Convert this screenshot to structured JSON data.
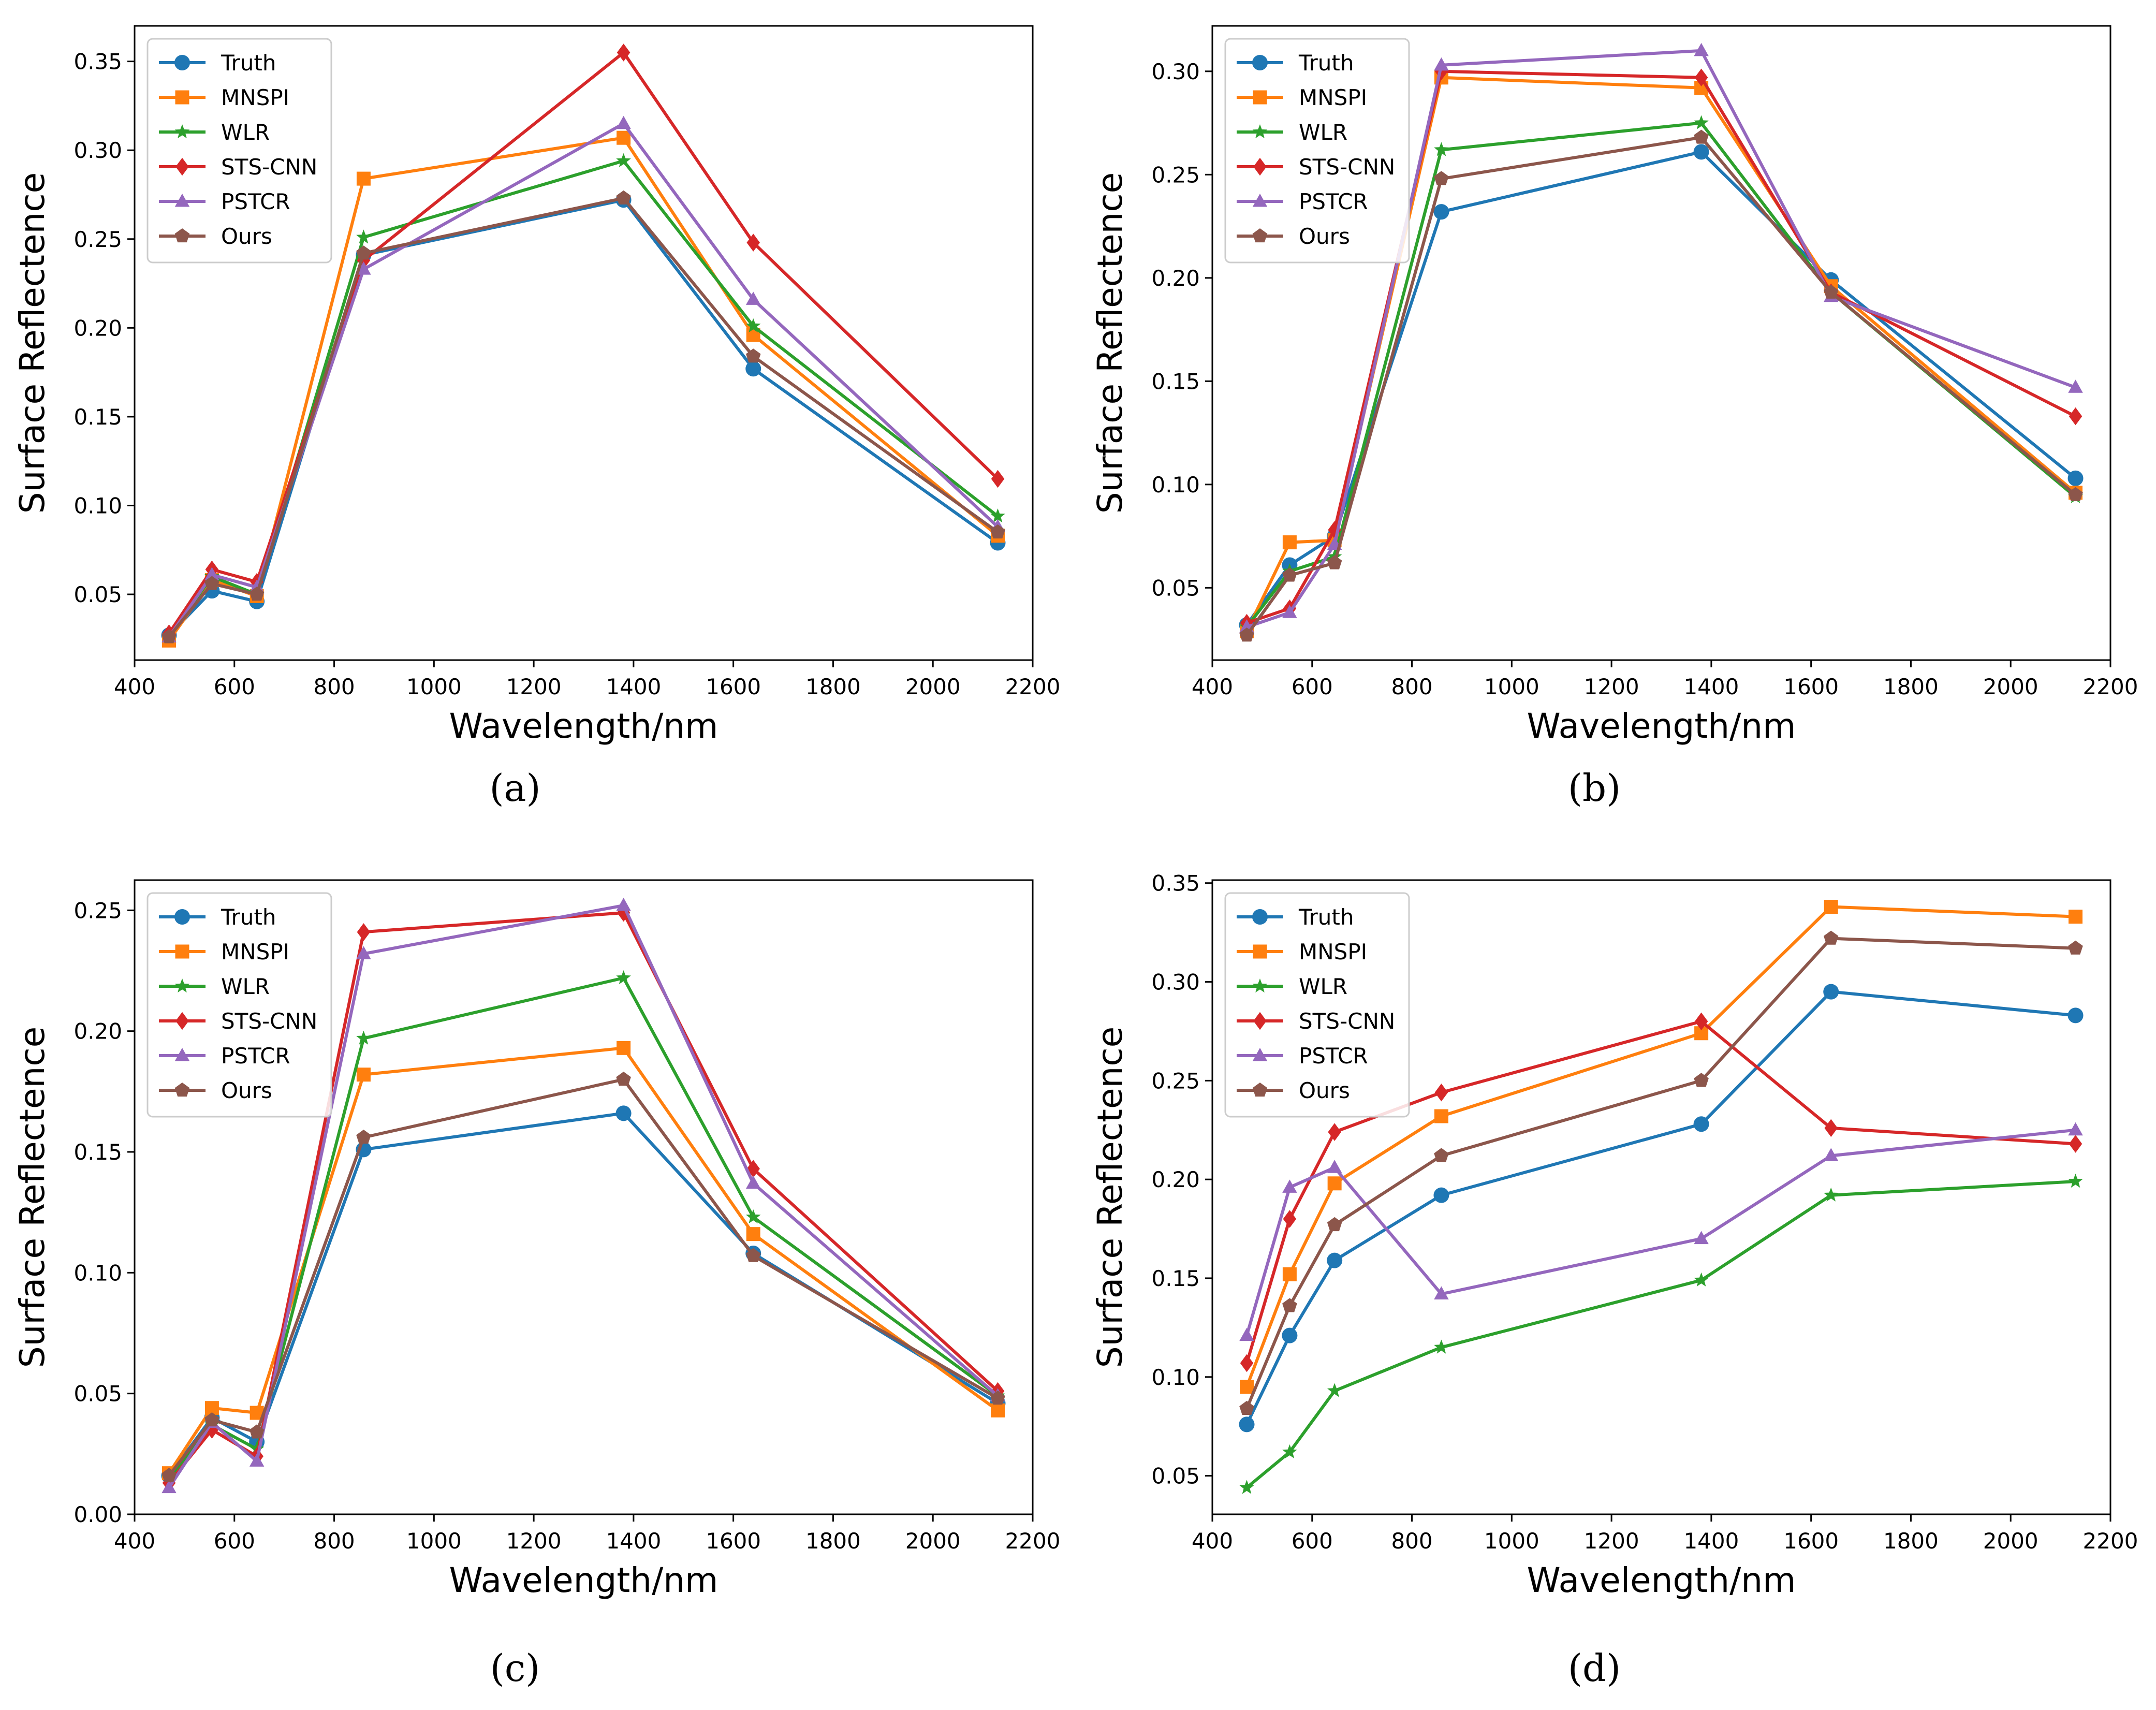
{
  "chart_data": [
    {
      "type": "line",
      "caption": "(a)",
      "xlabel": "Wavelength/nm",
      "ylabel": "Surface Reflectence",
      "xlim": [
        400,
        2200
      ],
      "ylim": [
        0.013,
        0.37
      ],
      "xticks": [
        400,
        600,
        800,
        1000,
        1200,
        1400,
        1600,
        1800,
        2000,
        2200
      ],
      "yticks": [
        0.05,
        0.1,
        0.15,
        0.2,
        0.25,
        0.3,
        0.35
      ],
      "ytick_labels": [
        "0.05",
        "0.10",
        "0.15",
        "0.20",
        "0.25",
        "0.30",
        "0.35"
      ],
      "x": [
        469,
        555,
        645,
        859,
        1380,
        1640,
        2130
      ],
      "legend_position": "upper-left",
      "series": [
        {
          "name": "Truth",
          "values": [
            0.027,
            0.052,
            0.046,
            0.241,
            0.272,
            0.177,
            0.079
          ]
        },
        {
          "name": "MNSPI",
          "values": [
            0.024,
            0.058,
            0.049,
            0.284,
            0.307,
            0.196,
            0.083
          ]
        },
        {
          "name": "WLR",
          "values": [
            0.026,
            0.06,
            0.05,
            0.251,
            0.294,
            0.201,
            0.094
          ]
        },
        {
          "name": "STS-CNN",
          "values": [
            0.028,
            0.064,
            0.057,
            0.238,
            0.355,
            0.248,
            0.115
          ]
        },
        {
          "name": "PSTCR",
          "values": [
            0.026,
            0.061,
            0.054,
            0.233,
            0.315,
            0.216,
            0.088
          ]
        },
        {
          "name": "Ours",
          "values": [
            0.026,
            0.056,
            0.05,
            0.242,
            0.273,
            0.184,
            0.085
          ]
        }
      ]
    },
    {
      "type": "line",
      "caption": "(b)",
      "xlabel": "Wavelength/nm",
      "ylabel": "Surface Reflectence",
      "xlim": [
        400,
        2200
      ],
      "ylim": [
        0.015,
        0.322
      ],
      "xticks": [
        400,
        600,
        800,
        1000,
        1200,
        1400,
        1600,
        1800,
        2000,
        2200
      ],
      "yticks": [
        0.05,
        0.1,
        0.15,
        0.2,
        0.25,
        0.3
      ],
      "ytick_labels": [
        "0.05",
        "0.10",
        "0.15",
        "0.20",
        "0.25",
        "0.30"
      ],
      "x": [
        469,
        555,
        645,
        859,
        1380,
        1640,
        2130
      ],
      "legend_position": "upper-left",
      "series": [
        {
          "name": "Truth",
          "values": [
            0.032,
            0.061,
            0.075,
            0.232,
            0.261,
            0.199,
            0.103
          ]
        },
        {
          "name": "MNSPI",
          "values": [
            0.029,
            0.072,
            0.073,
            0.297,
            0.292,
            0.196,
            0.096
          ]
        },
        {
          "name": "WLR",
          "values": [
            0.031,
            0.058,
            0.065,
            0.262,
            0.275,
            0.193,
            0.094
          ]
        },
        {
          "name": "STS-CNN",
          "values": [
            0.033,
            0.04,
            0.078,
            0.3,
            0.297,
            0.193,
            0.133
          ]
        },
        {
          "name": "PSTCR",
          "values": [
            0.031,
            0.038,
            0.071,
            0.303,
            0.31,
            0.191,
            0.147
          ]
        },
        {
          "name": "Ours",
          "values": [
            0.027,
            0.056,
            0.062,
            0.248,
            0.268,
            0.193,
            0.095
          ]
        }
      ]
    },
    {
      "type": "line",
      "caption": "(c)",
      "xlabel": "Wavelength/nm",
      "ylabel": "Surface Reflectence",
      "xlim": [
        400,
        2200
      ],
      "ylim": [
        0.0,
        0.2625
      ],
      "xticks": [
        400,
        600,
        800,
        1000,
        1200,
        1400,
        1600,
        1800,
        2000,
        2200
      ],
      "yticks": [
        0.0,
        0.05,
        0.1,
        0.15,
        0.2,
        0.25
      ],
      "ytick_labels": [
        "0.00",
        "0.05",
        "0.10",
        "0.15",
        "0.20",
        "0.25"
      ],
      "x": [
        469,
        555,
        645,
        859,
        1380,
        1640,
        2130
      ],
      "legend_position": "upper-left",
      "series": [
        {
          "name": "Truth",
          "values": [
            0.016,
            0.04,
            0.03,
            0.151,
            0.166,
            0.108,
            0.046
          ]
        },
        {
          "name": "MNSPI",
          "values": [
            0.017,
            0.044,
            0.042,
            0.182,
            0.193,
            0.116,
            0.043
          ]
        },
        {
          "name": "WLR",
          "values": [
            0.015,
            0.037,
            0.027,
            0.197,
            0.222,
            0.123,
            0.049
          ]
        },
        {
          "name": "STS-CNN",
          "values": [
            0.013,
            0.035,
            0.024,
            0.241,
            0.249,
            0.143,
            0.051
          ]
        },
        {
          "name": "PSTCR",
          "values": [
            0.011,
            0.038,
            0.022,
            0.232,
            0.252,
            0.137,
            0.049
          ]
        },
        {
          "name": "Ours",
          "values": [
            0.016,
            0.039,
            0.034,
            0.156,
            0.18,
            0.107,
            0.048
          ]
        }
      ]
    },
    {
      "type": "line",
      "caption": "(d)",
      "xlabel": "Wavelength/nm",
      "ylabel": "Surface Reflectence",
      "xlim": [
        400,
        2200
      ],
      "ylim": [
        0.0305,
        0.3515
      ],
      "xticks": [
        400,
        600,
        800,
        1000,
        1200,
        1400,
        1600,
        1800,
        2000,
        2200
      ],
      "yticks": [
        0.05,
        0.1,
        0.15,
        0.2,
        0.25,
        0.3,
        0.35
      ],
      "ytick_labels": [
        "0.05",
        "0.10",
        "0.15",
        "0.20",
        "0.25",
        "0.30",
        "0.35"
      ],
      "x": [
        469,
        555,
        645,
        859,
        1380,
        1640,
        2130
      ],
      "legend_position": "upper-left",
      "series": [
        {
          "name": "Truth",
          "values": [
            0.076,
            0.121,
            0.159,
            0.192,
            0.228,
            0.295,
            0.283
          ]
        },
        {
          "name": "MNSPI",
          "values": [
            0.095,
            0.152,
            0.198,
            0.232,
            0.274,
            0.338,
            0.333
          ]
        },
        {
          "name": "WLR",
          "values": [
            0.044,
            0.062,
            0.093,
            0.115,
            0.149,
            0.192,
            0.199
          ]
        },
        {
          "name": "STS-CNN",
          "values": [
            0.107,
            0.18,
            0.224,
            0.244,
            0.28,
            0.226,
            0.218
          ]
        },
        {
          "name": "PSTCR",
          "values": [
            0.121,
            0.196,
            0.206,
            0.142,
            0.17,
            0.212,
            0.225
          ]
        },
        {
          "name": "Ours",
          "values": [
            0.084,
            0.136,
            0.177,
            0.212,
            0.25,
            0.322,
            0.317
          ]
        }
      ]
    }
  ],
  "series_style": [
    {
      "color": "#1f77b4",
      "marker": "circle-icon"
    },
    {
      "color": "#ff7f0e",
      "marker": "square-icon"
    },
    {
      "color": "#2ca02c",
      "marker": "star-icon"
    },
    {
      "color": "#d62728",
      "marker": "diamond-icon"
    },
    {
      "color": "#9467bd",
      "marker": "triangle-up-icon"
    },
    {
      "color": "#8c564b",
      "marker": "pentagon-icon"
    }
  ]
}
